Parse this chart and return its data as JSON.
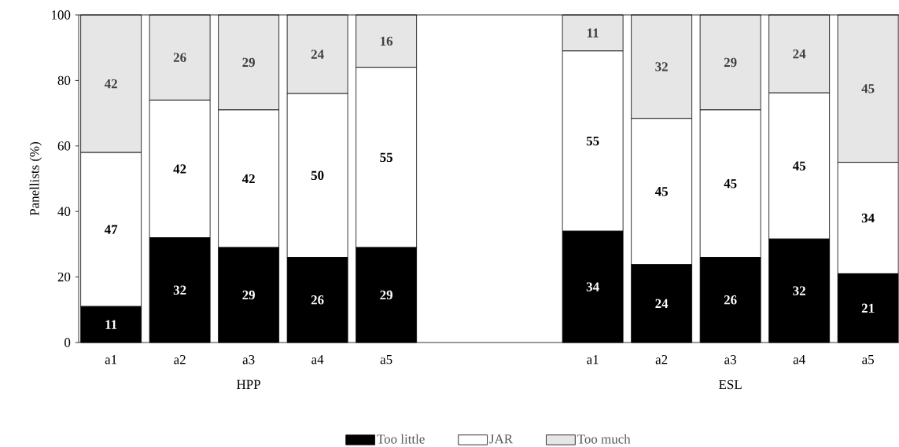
{
  "chart_data": {
    "type": "bar",
    "stacked": true,
    "ylabel": "Panellists (%)",
    "categories": [
      "a1",
      "a2",
      "a3",
      "a4",
      "a5",
      null,
      null,
      "a1",
      "a2",
      "a3",
      "a4",
      "a5"
    ],
    "series": [
      {
        "name": "Too little",
        "color": "#000000",
        "values": [
          11,
          32,
          29,
          26,
          29,
          null,
          null,
          34,
          23.8,
          26,
          31.6,
          21
        ],
        "value_labels": [
          "11",
          "32",
          "29",
          "26",
          "29",
          null,
          null,
          "34",
          "24",
          "26",
          "32",
          "21"
        ]
      },
      {
        "name": "JAR",
        "color": "#ffffff",
        "values": [
          47,
          42,
          42,
          50,
          55,
          null,
          null,
          55,
          44.6,
          45,
          44.6,
          34
        ],
        "value_labels": [
          "47",
          "42",
          "42",
          "50",
          "55",
          null,
          null,
          "55",
          "45",
          "45",
          "45",
          "34"
        ]
      },
      {
        "name": "Too much",
        "color": "#e6e6e6",
        "values": [
          42,
          26,
          29,
          24,
          16,
          null,
          null,
          11,
          31.6,
          29,
          23.8,
          45
        ],
        "value_labels": [
          "42",
          "26",
          "29",
          "24",
          "16",
          null,
          null,
          "11",
          "32",
          "29",
          "24",
          "45"
        ]
      }
    ],
    "ylim": [
      0,
      100
    ],
    "yticks": [
      0,
      20,
      40,
      60,
      80,
      100
    ],
    "legend": "bottom",
    "annotations": [
      "HPP",
      "ESL"
    ]
  }
}
